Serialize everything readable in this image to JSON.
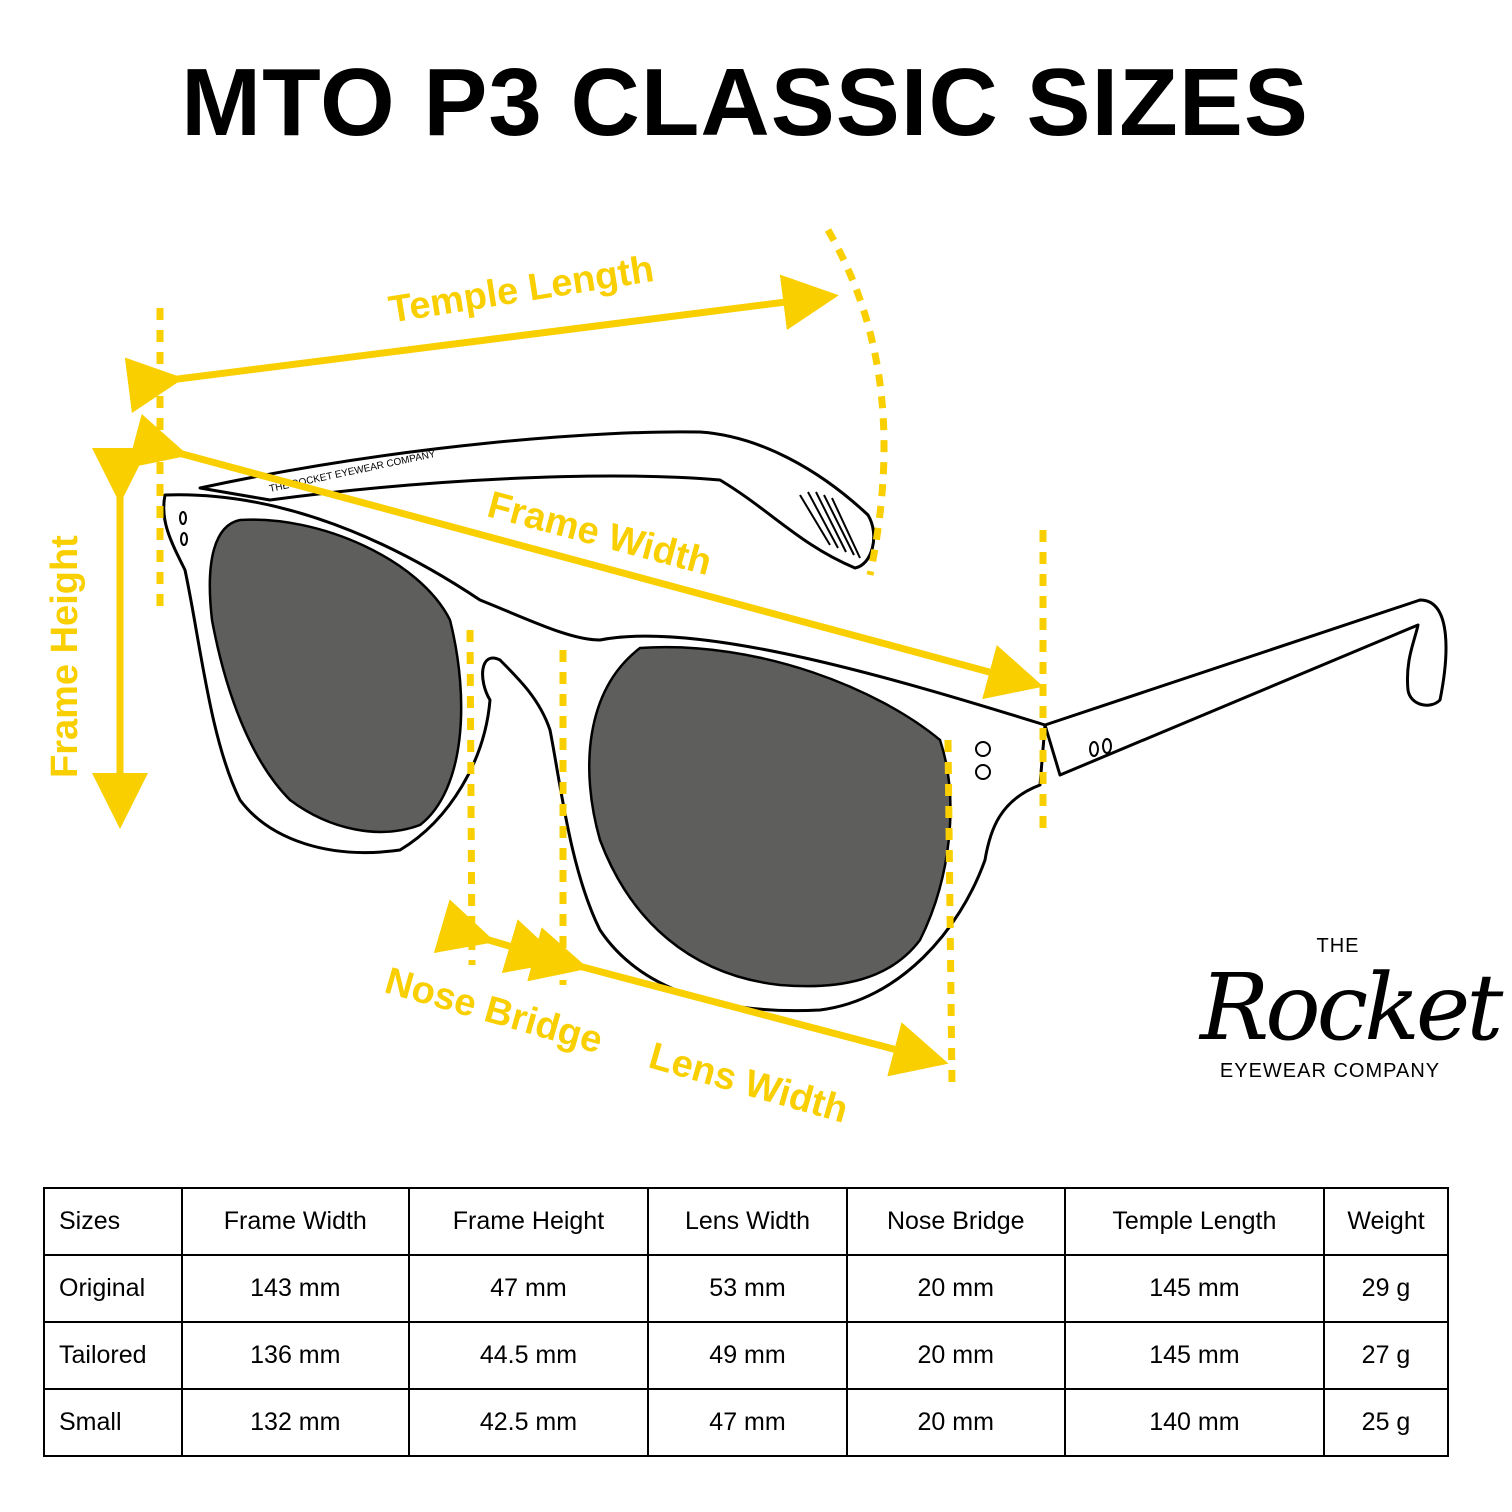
{
  "title": "MTO P3 CLASSIC SIZES",
  "diagram": {
    "accent_color": "#F9CF00",
    "lens_color": "#5E5E5C",
    "temple_imprint": "THE ROCKET EYEWEAR COMPANY",
    "labels": {
      "temple_length": "Temple Length",
      "frame_width": "Frame Width",
      "frame_height": "Frame Height",
      "nose_bridge": "Nose Bridge",
      "lens_width": "Lens Width"
    }
  },
  "logo": {
    "top": "THE",
    "script": "Rocket",
    "bottom": "EYEWEAR COMPANY"
  },
  "table": {
    "headers": [
      "Sizes",
      "Frame Width",
      "Frame Height",
      "Lens Width",
      "Nose Bridge",
      "Temple Length",
      "Weight"
    ],
    "rows": [
      [
        "Original",
        "143 mm",
        "47 mm",
        "53 mm",
        "20 mm",
        "145 mm",
        "29 g"
      ],
      [
        "Tailored",
        "136 mm",
        "44.5 mm",
        "49 mm",
        "20 mm",
        "145 mm",
        "27 g"
      ],
      [
        "Small",
        "132 mm",
        "42.5 mm",
        "47 mm",
        "20 mm",
        "140 mm",
        "25 g"
      ]
    ]
  }
}
